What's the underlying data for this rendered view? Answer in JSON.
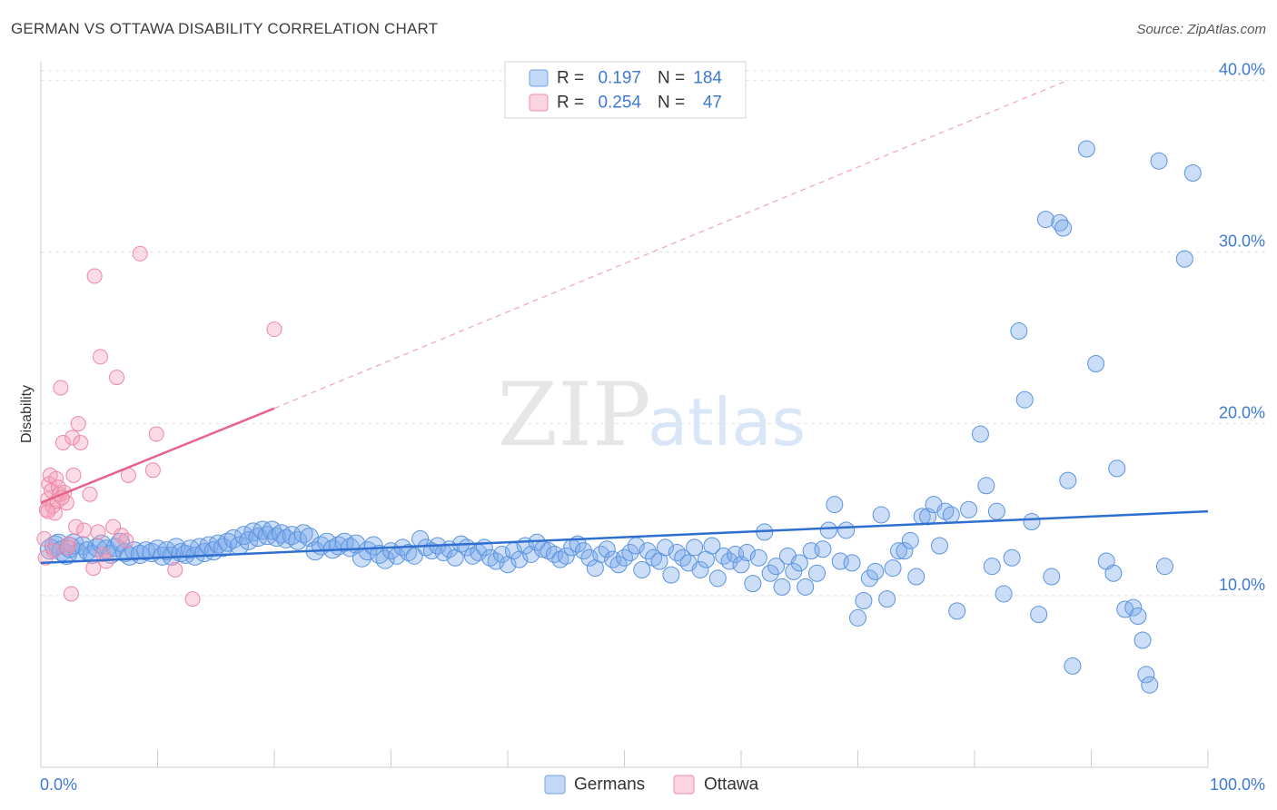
{
  "title": "GERMAN VS OTTAWA DISABILITY CORRELATION CHART",
  "source": "Source: ZipAtlas.com",
  "watermark": {
    "zip": "ZIP",
    "atlas": "atlas"
  },
  "chart_data": {
    "type": "scatter",
    "title": "GERMAN VS OTTAWA DISABILITY CORRELATION CHART",
    "ylabel": "Disability",
    "xlabel": "",
    "xlim": [
      0,
      100
    ],
    "ylim": [
      0,
      41.5
    ],
    "x_tick_labels": [
      {
        "value": 0,
        "label": "0.0%"
      },
      {
        "value": 100,
        "label": "100.0%"
      }
    ],
    "y_ticks": [
      {
        "value": 10,
        "label": "10.0%"
      },
      {
        "value": 20,
        "label": "20.0%"
      },
      {
        "value": 30,
        "label": "30.0%"
      },
      {
        "value": 40,
        "label": "40.0%"
      }
    ],
    "grid": true,
    "legend_position": "top-center",
    "legend": [
      {
        "name": "Germans",
        "r_label": "R =",
        "r": "0.197",
        "n_label": "N =",
        "n": "184",
        "color": "#6fa3e8",
        "line_color": "#2f6fd0"
      },
      {
        "name": "Ottawa",
        "r_label": "R =",
        "r": "0.254",
        "n_label": "N =",
        "n": "47",
        "color": "#f08cab",
        "line_color": "#e8628b"
      }
    ],
    "series": [
      {
        "name": "Germans",
        "trend": {
          "x0": 0,
          "y0": 11.9,
          "x1": 100,
          "y1": 14.9
        },
        "points": [
          [
            0.8,
            12.7
          ],
          [
            1.2,
            12.9
          ],
          [
            1.5,
            13.0
          ],
          [
            1.8,
            12.6
          ],
          [
            2.2,
            12.4
          ],
          [
            2.5,
            12.8
          ],
          [
            2.8,
            13.0
          ],
          [
            3.2,
            12.5
          ],
          [
            3.6,
            12.9
          ],
          [
            4.0,
            12.6
          ],
          [
            4.4,
            12.4
          ],
          [
            4.8,
            12.8
          ],
          [
            5.2,
            13.0
          ],
          [
            5.6,
            12.7
          ],
          [
            6.0,
            12.4
          ],
          [
            6.4,
            12.8
          ],
          [
            6.8,
            13.1
          ],
          [
            7.2,
            12.5
          ],
          [
            7.6,
            12.3
          ],
          [
            8.0,
            12.6
          ],
          [
            8.5,
            12.4
          ],
          [
            9.0,
            12.6
          ],
          [
            9.5,
            12.5
          ],
          [
            10.0,
            12.7
          ],
          [
            10.4,
            12.3
          ],
          [
            10.8,
            12.6
          ],
          [
            11.2,
            12.3
          ],
          [
            11.6,
            12.8
          ],
          [
            12.0,
            12.5
          ],
          [
            12.4,
            12.4
          ],
          [
            12.8,
            12.7
          ],
          [
            13.2,
            12.3
          ],
          [
            13.6,
            12.8
          ],
          [
            14.0,
            12.5
          ],
          [
            14.4,
            12.9
          ],
          [
            14.8,
            12.6
          ],
          [
            15.2,
            13.0
          ],
          [
            15.6,
            12.8
          ],
          [
            16.0,
            13.1
          ],
          [
            16.5,
            13.3
          ],
          [
            17.0,
            12.9
          ],
          [
            17.4,
            13.5
          ],
          [
            17.8,
            13.2
          ],
          [
            18.2,
            13.7
          ],
          [
            18.6,
            13.4
          ],
          [
            19.0,
            13.8
          ],
          [
            19.4,
            13.5
          ],
          [
            19.8,
            13.8
          ],
          [
            20.2,
            13.4
          ],
          [
            20.6,
            13.6
          ],
          [
            21.0,
            13.3
          ],
          [
            21.5,
            13.5
          ],
          [
            22.0,
            13.2
          ],
          [
            22.5,
            13.6
          ],
          [
            23.0,
            13.4
          ],
          [
            23.5,
            12.6
          ],
          [
            24.0,
            12.9
          ],
          [
            24.5,
            13.1
          ],
          [
            25.0,
            12.7
          ],
          [
            25.5,
            12.9
          ],
          [
            26.0,
            13.1
          ],
          [
            26.5,
            12.8
          ],
          [
            27.0,
            13.0
          ],
          [
            27.5,
            12.2
          ],
          [
            28.0,
            12.6
          ],
          [
            28.5,
            12.9
          ],
          [
            29.0,
            12.4
          ],
          [
            29.5,
            12.1
          ],
          [
            30.0,
            12.6
          ],
          [
            30.5,
            12.3
          ],
          [
            31.0,
            12.8
          ],
          [
            31.5,
            12.5
          ],
          [
            32.0,
            12.3
          ],
          [
            32.5,
            13.3
          ],
          [
            33.0,
            12.8
          ],
          [
            33.5,
            12.6
          ],
          [
            34.0,
            12.9
          ],
          [
            34.5,
            12.5
          ],
          [
            35.0,
            12.7
          ],
          [
            35.5,
            12.2
          ],
          [
            36.0,
            13.0
          ],
          [
            36.5,
            12.8
          ],
          [
            37.0,
            12.3
          ],
          [
            37.5,
            12.5
          ],
          [
            38.0,
            12.8
          ],
          [
            38.5,
            12.2
          ],
          [
            39.0,
            12.0
          ],
          [
            39.5,
            12.4
          ],
          [
            40.0,
            11.8
          ],
          [
            40.5,
            12.6
          ],
          [
            41.0,
            12.1
          ],
          [
            41.5,
            12.9
          ],
          [
            42.0,
            12.4
          ],
          [
            42.5,
            13.1
          ],
          [
            43.0,
            12.7
          ],
          [
            43.5,
            12.6
          ],
          [
            44.0,
            12.4
          ],
          [
            44.5,
            12.1
          ],
          [
            45.0,
            12.3
          ],
          [
            45.5,
            12.8
          ],
          [
            46.0,
            13.0
          ],
          [
            46.5,
            12.6
          ],
          [
            47.0,
            12.2
          ],
          [
            47.5,
            11.6
          ],
          [
            48.0,
            12.4
          ],
          [
            48.5,
            12.7
          ],
          [
            49.0,
            12.1
          ],
          [
            49.5,
            11.8
          ],
          [
            50.0,
            12.2
          ],
          [
            50.5,
            12.5
          ],
          [
            51.0,
            12.9
          ],
          [
            51.5,
            11.5
          ],
          [
            52.0,
            12.6
          ],
          [
            52.5,
            12.2
          ],
          [
            53.0,
            12.0
          ],
          [
            53.5,
            12.8
          ],
          [
            54.0,
            11.2
          ],
          [
            54.5,
            12.5
          ],
          [
            55.0,
            12.2
          ],
          [
            55.5,
            11.9
          ],
          [
            56.0,
            12.8
          ],
          [
            56.5,
            11.5
          ],
          [
            57.0,
            12.1
          ],
          [
            57.5,
            12.9
          ],
          [
            58.0,
            11.0
          ],
          [
            58.5,
            12.3
          ],
          [
            59.0,
            12.0
          ],
          [
            59.5,
            12.4
          ],
          [
            60.0,
            11.8
          ],
          [
            60.5,
            12.5
          ],
          [
            61.0,
            10.7
          ],
          [
            61.5,
            12.2
          ],
          [
            62.0,
            13.7
          ],
          [
            62.5,
            11.3
          ],
          [
            63.0,
            11.7
          ],
          [
            63.5,
            10.5
          ],
          [
            64.0,
            12.3
          ],
          [
            64.5,
            11.4
          ],
          [
            65.0,
            11.9
          ],
          [
            65.5,
            10.5
          ],
          [
            66.0,
            12.6
          ],
          [
            66.5,
            11.3
          ],
          [
            67.0,
            12.7
          ],
          [
            67.5,
            13.8
          ],
          [
            68.0,
            15.3
          ],
          [
            68.5,
            12.0
          ],
          [
            69.0,
            13.8
          ],
          [
            69.5,
            11.9
          ],
          [
            70.0,
            8.7
          ],
          [
            70.5,
            9.7
          ],
          [
            71.0,
            11.0
          ],
          [
            71.5,
            11.4
          ],
          [
            72.0,
            14.7
          ],
          [
            72.5,
            9.8
          ],
          [
            73.0,
            11.6
          ],
          [
            73.5,
            12.6
          ],
          [
            74.0,
            12.6
          ],
          [
            74.5,
            13.2
          ],
          [
            75.0,
            11.1
          ],
          [
            75.5,
            14.6
          ],
          [
            76.0,
            14.6
          ],
          [
            76.5,
            15.3
          ],
          [
            77.0,
            12.9
          ],
          [
            77.5,
            14.9
          ],
          [
            78.0,
            14.7
          ],
          [
            78.5,
            9.1
          ],
          [
            79.5,
            15.0
          ],
          [
            80.5,
            19.4
          ],
          [
            81.0,
            16.4
          ],
          [
            81.5,
            11.7
          ],
          [
            81.9,
            14.9
          ],
          [
            82.5,
            10.1
          ],
          [
            83.2,
            12.2
          ],
          [
            83.8,
            25.4
          ],
          [
            84.3,
            21.4
          ],
          [
            84.9,
            14.3
          ],
          [
            85.5,
            8.9
          ],
          [
            86.1,
            31.9
          ],
          [
            86.6,
            11.1
          ],
          [
            87.3,
            31.7
          ],
          [
            87.6,
            31.4
          ],
          [
            88.0,
            16.7
          ],
          [
            88.4,
            5.9
          ],
          [
            89.6,
            36.0
          ],
          [
            90.4,
            23.5
          ],
          [
            91.3,
            12.0
          ],
          [
            91.9,
            11.3
          ],
          [
            92.2,
            17.4
          ],
          [
            92.9,
            9.2
          ],
          [
            93.6,
            9.3
          ],
          [
            94.0,
            8.8
          ],
          [
            94.4,
            7.4
          ],
          [
            94.7,
            5.4
          ],
          [
            96.3,
            11.7
          ],
          [
            98.0,
            29.6
          ],
          [
            95.0,
            4.8
          ],
          [
            95.8,
            35.3
          ],
          [
            98.7,
            34.6
          ]
        ]
      },
      {
        "name": "Ottawa",
        "trend": {
          "x0": 0,
          "y0": 15.4,
          "x1": 20,
          "y1": 20.9
        },
        "trend_extension": {
          "x0": 20,
          "y0": 20.9,
          "x1": 88,
          "y1": 40.0
        },
        "points": [
          [
            0.3,
            13.3
          ],
          [
            0.4,
            12.2
          ],
          [
            0.5,
            15.0
          ],
          [
            0.6,
            15.6
          ],
          [
            0.7,
            16.5
          ],
          [
            0.8,
            17.0
          ],
          [
            0.9,
            16.1
          ],
          [
            1.0,
            15.2
          ],
          [
            1.1,
            12.6
          ],
          [
            1.2,
            14.8
          ],
          [
            1.3,
            16.8
          ],
          [
            1.4,
            15.5
          ],
          [
            1.5,
            16.3
          ],
          [
            1.6,
            15.9
          ],
          [
            1.7,
            22.1
          ],
          [
            1.9,
            18.9
          ],
          [
            2.0,
            16.0
          ],
          [
            2.2,
            15.4
          ],
          [
            2.4,
            13.0
          ],
          [
            2.6,
            10.1
          ],
          [
            2.7,
            19.2
          ],
          [
            2.8,
            17.0
          ],
          [
            3.0,
            14.0
          ],
          [
            3.2,
            20.0
          ],
          [
            3.4,
            18.9
          ],
          [
            3.7,
            13.8
          ],
          [
            4.2,
            15.9
          ],
          [
            4.5,
            11.6
          ],
          [
            4.6,
            28.6
          ],
          [
            4.9,
            13.7
          ],
          [
            5.1,
            23.9
          ],
          [
            5.3,
            12.4
          ],
          [
            5.6,
            12.0
          ],
          [
            6.2,
            14.0
          ],
          [
            6.5,
            22.7
          ],
          [
            6.9,
            13.5
          ],
          [
            7.3,
            13.2
          ],
          [
            7.5,
            17.0
          ],
          [
            8.5,
            29.9
          ],
          [
            9.6,
            17.3
          ],
          [
            9.9,
            19.4
          ],
          [
            11.5,
            11.5
          ],
          [
            13.0,
            9.8
          ],
          [
            20.0,
            25.5
          ],
          [
            1.8,
            15.7
          ],
          [
            2.3,
            12.8
          ],
          [
            0.6,
            14.9
          ]
        ]
      }
    ]
  }
}
